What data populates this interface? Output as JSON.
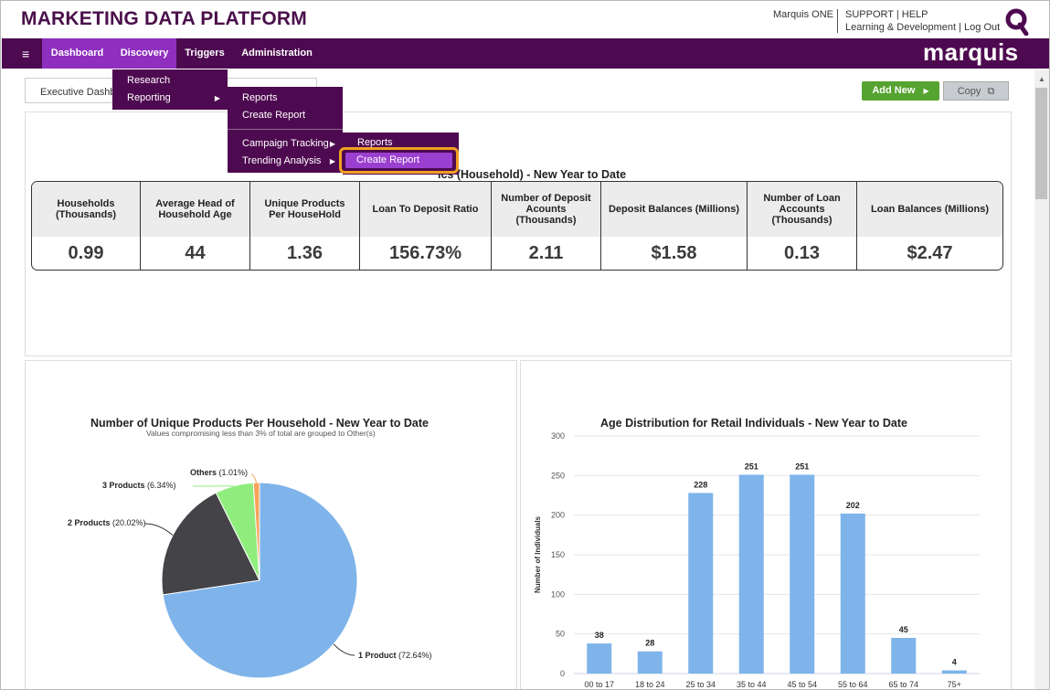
{
  "app_title": "MARKETING DATA PLATFORM",
  "header": {
    "user_menu": "Marquis ONE",
    "support_links": "SUPPORT | HELP",
    "secondary_links": "Learning & Development | Log Out",
    "logo": "marquis"
  },
  "nav": {
    "menu_icon": "≡",
    "items": [
      "Dashboard",
      "Discovery",
      "Triggers",
      "Administration"
    ]
  },
  "menus": {
    "discovery": [
      "Research",
      "Reporting"
    ],
    "reporting": [
      "Reports",
      "Create Report",
      "Campaign Tracking",
      "Trending Analysis"
    ],
    "campaign_tracking": [
      "Reports",
      "Create Report"
    ]
  },
  "toolbar": {
    "tab_label": "Executive Dashb",
    "add_new": "Add New",
    "copy": "Copy"
  },
  "kpi": {
    "title": "ics (Household) - New Year to Date",
    "columns": [
      {
        "label": "Households (Thousands)",
        "value": "0.99"
      },
      {
        "label": "Average Head of Household Age",
        "value": "44"
      },
      {
        "label": "Unique Products Per HouseHold",
        "value": "1.36"
      },
      {
        "label": "Loan To Deposit Ratio",
        "value": "156.73%"
      },
      {
        "label": "Number of Deposit Acounts (Thousands)",
        "value": "2.11"
      },
      {
        "label": "Deposit Balances (Millions)",
        "value": "$1.58"
      },
      {
        "label": "Number of Loan Accounts (Thousands)",
        "value": "0.13"
      },
      {
        "label": "Loan Balances (Millions)",
        "value": "$2.47"
      }
    ]
  },
  "colors": {
    "brand_purple": "#4e0a50",
    "nav_active": "#8f2fbf",
    "add_green": "#55a330",
    "highlight_orange": "#f0a020",
    "bar_blue": "#7eb4ea",
    "pie_dark": "#434348",
    "pie_green": "#90ed7d",
    "pie_orange": "#f7a35c"
  },
  "chart_data": [
    {
      "type": "pie",
      "title": "Number of Unique Products Per Household - New Year to Date",
      "subtitle": "Values compromising less than 3% of total are grouped to Other(s)",
      "slices": [
        {
          "name": "1 Product",
          "label": "(72.64%)",
          "value": 72.64
        },
        {
          "name": "2 Products",
          "label": "(20.02%)",
          "value": 20.02
        },
        {
          "name": "3 Products",
          "label": "(6.34%)",
          "value": 6.34
        },
        {
          "name": "Others",
          "label": "(1.01%)",
          "value": 1.01
        }
      ]
    },
    {
      "type": "bar",
      "title": "Age Distribution for Retail Individuals - New Year to Date",
      "ylabel": "Number of Individuals",
      "ylim": [
        0,
        300
      ],
      "yticks": [
        0,
        50,
        100,
        150,
        200,
        250,
        300
      ],
      "categories": [
        "00 to 17",
        "18 to 24",
        "25 to 34",
        "35 to 44",
        "45 to 54",
        "55 to 64",
        "65 to 74",
        "75+"
      ],
      "values": [
        38,
        28,
        228,
        251,
        251,
        202,
        45,
        4
      ]
    }
  ]
}
